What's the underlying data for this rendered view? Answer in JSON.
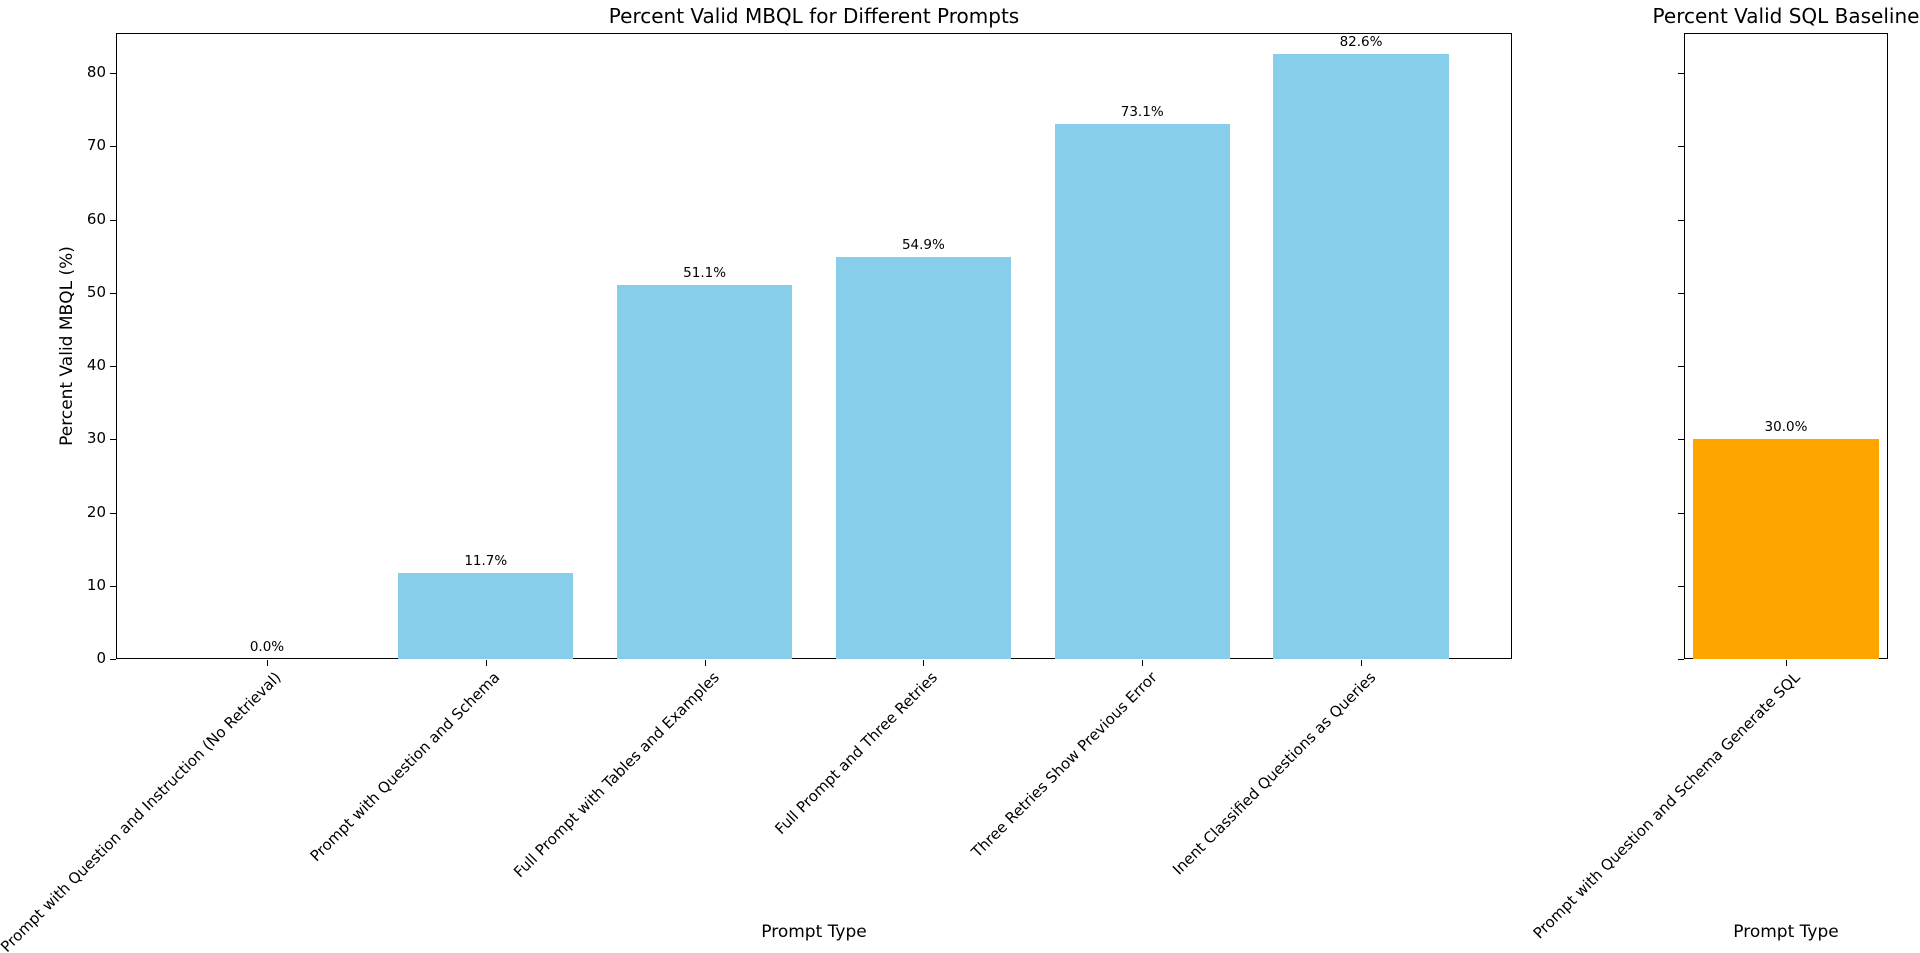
{
  "figure": {
    "background_color": "#ffffff"
  },
  "chart_data": [
    {
      "type": "bar",
      "title": "Percent Valid MBQL for Different Prompts",
      "xlabel": "Prompt Type",
      "ylabel": "Percent Valid MBQL (%)",
      "categories": [
        "Prompt with Question and Instruction (No Retrieval)",
        "Prompt with Question and Schema",
        "Full Prompt with Tables and Examples",
        "Full Prompt and Three Retries",
        "Three Retries Show Previous Error",
        "Inent Classified Questions as Queries"
      ],
      "values": [
        0.0,
        11.7,
        51.1,
        54.9,
        73.1,
        82.6
      ],
      "value_labels": [
        "0.0%",
        "11.7%",
        "51.1%",
        "54.9%",
        "73.1%",
        "82.6%"
      ],
      "bar_color": "#87CEEB",
      "ylim": [
        0,
        85.5
      ],
      "yticks": [
        0,
        10,
        20,
        30,
        40,
        50,
        60,
        70,
        80
      ],
      "show_ytick_labels": true,
      "grid": false,
      "legend": null,
      "xtick_rotation_deg": 45
    },
    {
      "type": "bar",
      "title": "Percent Valid SQL Baseline",
      "xlabel": "Prompt Type",
      "ylabel": "",
      "categories": [
        "Prompt with Question and Schema Generate SQL"
      ],
      "values": [
        30.0
      ],
      "value_labels": [
        "30.0%"
      ],
      "bar_color": "#FFA500",
      "ylim": [
        0,
        85.5
      ],
      "yticks": [
        0,
        10,
        20,
        30,
        40,
        50,
        60,
        70,
        80
      ],
      "show_ytick_labels": false,
      "grid": false,
      "legend": null,
      "xtick_rotation_deg": 45
    }
  ]
}
